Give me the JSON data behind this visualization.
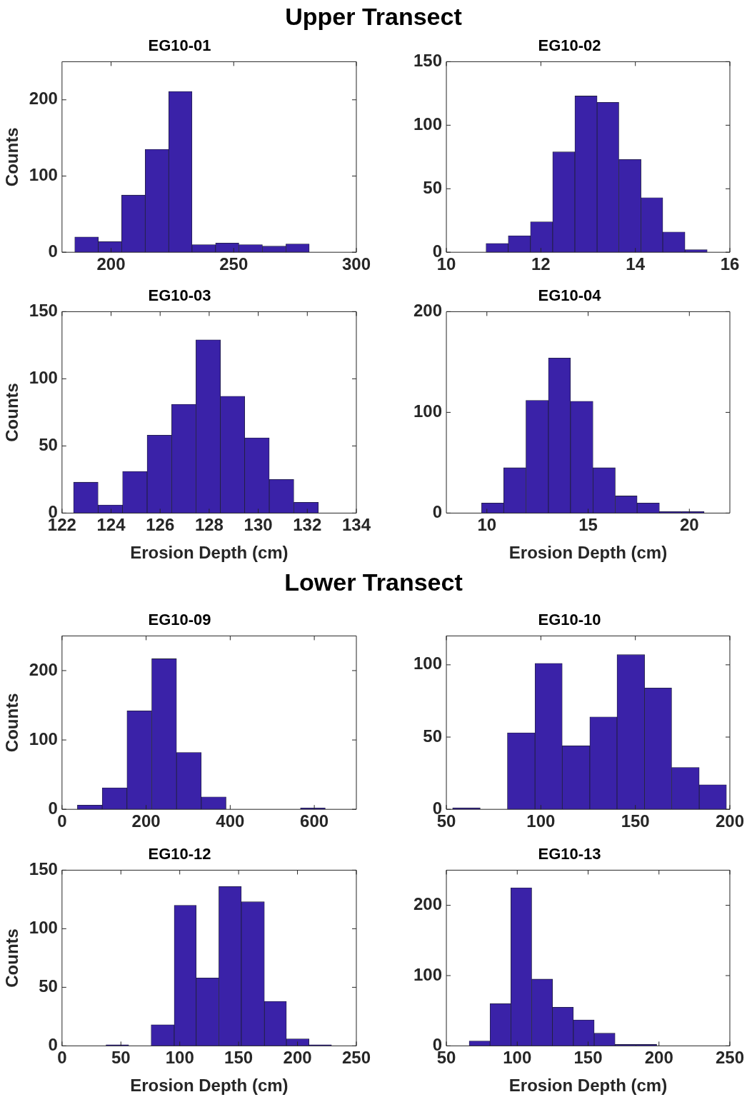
{
  "chart_data": [
    {
      "type": "histogram",
      "title": "EG10-01",
      "ylabel": "Counts",
      "annotations": [
        "Upper Transect"
      ],
      "color": "#3a22a8",
      "grid": false,
      "xlim": [
        180,
        300
      ],
      "xticks": [
        200,
        250,
        300
      ],
      "ylim": [
        0,
        250
      ],
      "yticks": [
        0,
        100,
        200
      ],
      "bins": [
        185.2,
        194.8,
        204.3,
        213.9,
        223.5,
        233.0,
        242.6,
        252.1,
        261.7,
        271.3,
        280.8
      ],
      "values": [
        20,
        14,
        75,
        135,
        211,
        10,
        12,
        10,
        8,
        11
      ]
    },
    {
      "type": "histogram",
      "title": "EG10-02",
      "color": "#3a22a8",
      "grid": false,
      "xlim": [
        10,
        16
      ],
      "xticks": [
        10,
        12,
        14,
        16
      ],
      "ylim": [
        0,
        150
      ],
      "yticks": [
        0,
        50,
        100,
        150
      ],
      "bins": [
        10.84,
        11.31,
        11.78,
        12.25,
        12.72,
        13.19,
        13.65,
        14.12,
        14.58,
        15.05,
        15.52
      ],
      "values": [
        7,
        13,
        24,
        79,
        123,
        118,
        73,
        43,
        16,
        2
      ]
    },
    {
      "type": "histogram",
      "title": "EG10-03",
      "ylabel": "Counts",
      "xlabel": "Erosion Depth (cm)",
      "color": "#3a22a8",
      "grid": false,
      "xlim": [
        122,
        134
      ],
      "xticks": [
        122,
        124,
        126,
        128,
        130,
        132,
        134
      ],
      "ylim": [
        0,
        150
      ],
      "yticks": [
        0,
        50,
        100,
        150
      ],
      "bins": [
        122.47,
        123.47,
        124.47,
        125.47,
        126.47,
        127.46,
        128.46,
        129.45,
        130.45,
        131.45,
        132.45
      ],
      "values": [
        23,
        6,
        31,
        58,
        81,
        129,
        87,
        56,
        25,
        8
      ]
    },
    {
      "type": "histogram",
      "title": "EG10-04",
      "xlabel": "Erosion Depth (cm)",
      "color": "#3a22a8",
      "grid": false,
      "xlim": [
        8,
        22
      ],
      "xticks": [
        10,
        15,
        20
      ],
      "ylim": [
        0,
        200
      ],
      "yticks": [
        0,
        100,
        200
      ],
      "bins": [
        9.74,
        10.83,
        11.93,
        13.04,
        14.13,
        15.24,
        16.34,
        17.42,
        18.52,
        19.62,
        20.73
      ],
      "values": [
        10,
        45,
        112,
        154,
        111,
        45,
        17,
        10,
        1.5,
        1.5
      ]
    },
    {
      "type": "histogram",
      "title": "EG10-09",
      "ylabel": "Counts",
      "annotations": [
        "Lower Transect"
      ],
      "color": "#3a22a8",
      "grid": false,
      "xlim": [
        0,
        700
      ],
      "xticks": [
        0,
        200,
        400,
        600
      ],
      "ylim": [
        0,
        250
      ],
      "yticks": [
        0,
        100,
        200
      ],
      "bins": [
        36.6,
        95.6,
        154.5,
        213.4,
        272.3,
        331.2,
        390.1,
        449,
        508,
        567,
        626
      ],
      "values": [
        6,
        31,
        142,
        217,
        82,
        18,
        0,
        0,
        0,
        2
      ]
    },
    {
      "type": "histogram",
      "title": "EG10-10",
      "color": "#3a22a8",
      "grid": false,
      "xlim": [
        50,
        200
      ],
      "xticks": [
        50,
        100,
        150,
        200
      ],
      "ylim": [
        0,
        120
      ],
      "yticks": [
        0,
        50,
        100
      ],
      "bins": [
        53.3,
        67.9,
        82.3,
        96.9,
        111.3,
        125.9,
        140.3,
        154.9,
        169.2,
        183.8,
        198.2
      ],
      "values": [
        1,
        0,
        53,
        101,
        44,
        64,
        107,
        84,
        29,
        17
      ]
    },
    {
      "type": "histogram",
      "title": "EG10-12",
      "ylabel": "Counts",
      "xlabel": "Erosion Depth (cm)",
      "color": "#3a22a8",
      "grid": false,
      "xlim": [
        0,
        250
      ],
      "xticks": [
        0,
        50,
        100,
        150,
        200,
        250
      ],
      "ylim": [
        0,
        150
      ],
      "yticks": [
        0,
        50,
        100,
        150
      ],
      "bins": [
        37.4,
        56.6,
        75.7,
        95.3,
        114,
        133.2,
        152.3,
        171.9,
        190.6,
        209.8,
        228.9
      ],
      "values": [
        1,
        0,
        18,
        120,
        58,
        136,
        123,
        38,
        6,
        1
      ]
    },
    {
      "type": "histogram",
      "title": "EG10-13",
      "xlabel": "Erosion Depth (cm)",
      "color": "#3a22a8",
      "grid": false,
      "xlim": [
        50,
        250
      ],
      "xticks": [
        50,
        100,
        150,
        200,
        250
      ],
      "ylim": [
        0,
        250
      ],
      "yticks": [
        0,
        100,
        200
      ],
      "bins": [
        66.1,
        80.8,
        95.5,
        110.2,
        124.9,
        139.6,
        154.3,
        169,
        183.7,
        198.4
      ],
      "values": [
        7,
        60,
        225,
        95,
        55,
        37,
        18,
        2,
        2
      ]
    }
  ]
}
